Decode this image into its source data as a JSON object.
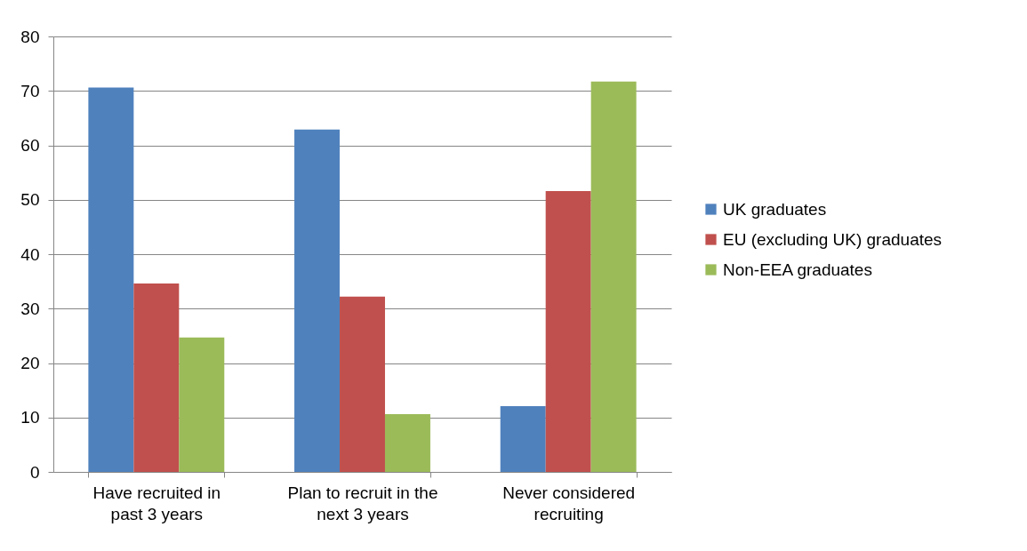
{
  "chart_data": {
    "type": "bar",
    "categories": [
      "Have recruited in past 3 years",
      "Plan to recruit in the next 3 years",
      "Never considered recruiting"
    ],
    "series": [
      {
        "name": "UK graduates",
        "color": "#4f81bd",
        "values": [
          70.6,
          62.9,
          12.1
        ]
      },
      {
        "name": "EU (excluding UK) graduates",
        "color": "#c0504d",
        "values": [
          34.6,
          32.2,
          51.6
        ]
      },
      {
        "name": "Non-EEA graduates",
        "color": "#9bbb59",
        "values": [
          24.7,
          10.6,
          71.7
        ]
      }
    ],
    "ylim": [
      0,
      80
    ],
    "yticks": [
      0,
      10,
      20,
      30,
      40,
      50,
      60,
      70,
      80
    ],
    "grid": "y",
    "legend": "right"
  }
}
